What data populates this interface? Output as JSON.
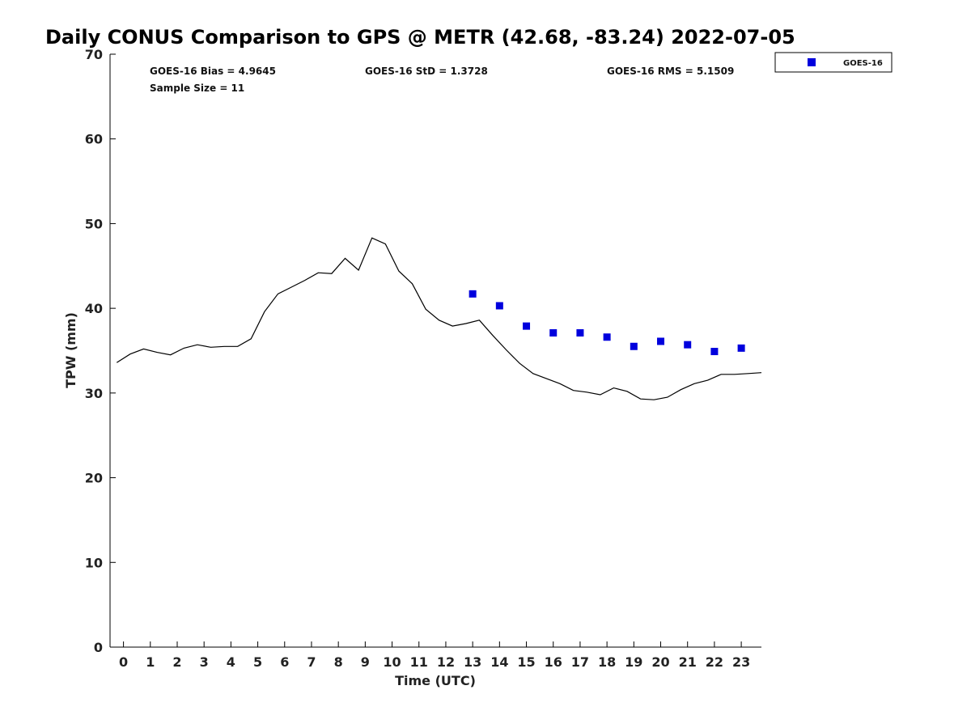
{
  "chart_data": {
    "type": "scatter",
    "title": "Daily CONUS Comparison to GPS @ METR (42.68, -83.24) 2022-07-05",
    "xlabel": "Time (UTC)",
    "ylabel": "TPW (mm)",
    "xlim": [
      -0.5,
      23.75
    ],
    "ylim": [
      0,
      70
    ],
    "x_ticks": [
      0,
      1,
      2,
      3,
      4,
      5,
      6,
      7,
      8,
      9,
      10,
      11,
      12,
      13,
      14,
      15,
      16,
      17,
      18,
      19,
      20,
      21,
      22,
      23
    ],
    "y_ticks": [
      0,
      10,
      20,
      30,
      40,
      50,
      60,
      70
    ],
    "grid": false,
    "legend_position": "top-right",
    "stats": {
      "bias": "GOES-16 Bias = 4.9645",
      "std": "GOES-16 StD = 1.3728",
      "rms": "GOES-16 RMS = 5.1509",
      "sample_size": "Sample Size = 11"
    },
    "series": [
      {
        "kind": "line",
        "color": "#000000",
        "x": [
          -0.25,
          0.25,
          0.75,
          1.25,
          1.75,
          2.25,
          2.75,
          3.25,
          3.75,
          4.25,
          4.75,
          5.25,
          5.75,
          6.25,
          6.75,
          7.25,
          7.75,
          8.25,
          8.75,
          9.25,
          9.75,
          10.25,
          10.75,
          11.25,
          11.75,
          12.25,
          12.75,
          13.25,
          13.75,
          14.25,
          14.75,
          15.25,
          15.75,
          16.25,
          16.75,
          17.25,
          17.75,
          18.25,
          18.75,
          19.25,
          19.75,
          20.25,
          20.75,
          21.25,
          21.75,
          22.25,
          22.75,
          23.25,
          23.75
        ],
        "y": [
          33.6,
          34.6,
          35.2,
          34.8,
          34.5,
          35.3,
          35.7,
          35.4,
          35.5,
          35.5,
          36.4,
          39.6,
          41.7,
          42.5,
          43.3,
          44.2,
          44.1,
          45.9,
          44.5,
          48.3,
          47.6,
          44.4,
          42.9,
          39.9,
          38.6,
          37.9,
          38.2,
          38.6,
          36.8,
          35.1,
          33.5,
          32.3,
          31.7,
          31.1,
          30.3,
          30.1,
          29.8,
          30.6,
          30.2,
          29.3,
          29.2,
          29.5,
          30.4,
          31.1,
          31.5,
          32.2,
          32.2,
          32.3,
          32.4
        ]
      },
      {
        "name": "GOES-16",
        "kind": "scatter",
        "color": "#0000dd",
        "x": [
          13,
          14,
          15,
          16,
          17,
          18,
          19,
          20,
          21,
          22,
          23
        ],
        "y": [
          41.7,
          40.3,
          37.9,
          37.1,
          37.1,
          36.6,
          35.5,
          36.1,
          35.7,
          34.9,
          35.3
        ]
      }
    ]
  }
}
